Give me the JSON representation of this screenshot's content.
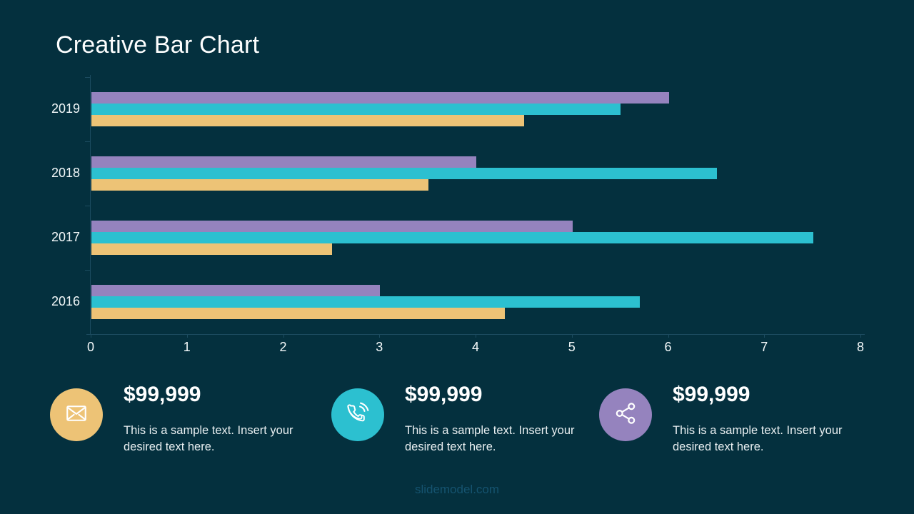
{
  "slide": {
    "title": "Creative Bar Chart",
    "background_color": "#04303e",
    "footer": "slidemodel.com"
  },
  "chart_data": {
    "type": "bar",
    "orientation": "horizontal",
    "title": "",
    "xlabel": "",
    "ylabel": "",
    "xlim": [
      0,
      8
    ],
    "x_ticks": [
      0,
      1,
      2,
      3,
      4,
      5,
      6,
      7,
      8
    ],
    "grid": false,
    "legend": false,
    "categories": [
      "2019",
      "2018",
      "2017",
      "2016"
    ],
    "series": [
      {
        "name": "series-purple",
        "color": "#9583be",
        "values": [
          6.0,
          4.0,
          5.0,
          3.0
        ]
      },
      {
        "name": "series-teal",
        "color": "#2cc0d0",
        "values": [
          5.5,
          6.5,
          7.5,
          5.7
        ]
      },
      {
        "name": "series-orange",
        "color": "#edc376",
        "values": [
          4.5,
          3.5,
          2.5,
          4.3
        ]
      }
    ],
    "axis_color": "#1c4c60",
    "tick_label_color": "#f4f9fa"
  },
  "stats": [
    {
      "icon": "mail-icon",
      "icon_color": "#edc376",
      "value": "$99,999",
      "description": "This is a sample text. Insert your desired text here."
    },
    {
      "icon": "phone-icon",
      "icon_color": "#2cc0d0",
      "value": "$99,999",
      "description": "This is a sample text. Insert your desired text here."
    },
    {
      "icon": "share-icon",
      "icon_color": "#9583be",
      "value": "$99,999",
      "description": "This is a sample text. Insert your desired text here."
    }
  ]
}
